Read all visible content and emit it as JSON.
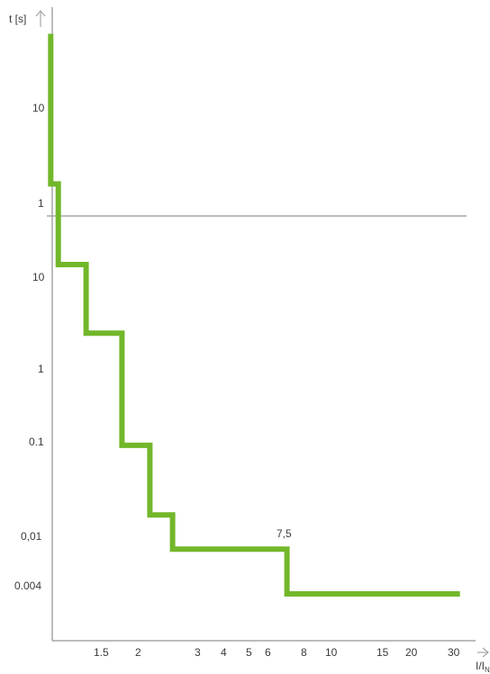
{
  "chart_data": {
    "type": "line",
    "title": "",
    "xlabel": "I/I",
    "xlabel_subscript": "N",
    "ylabel": "t [s]",
    "x_scale": "log",
    "y_scale": "log, broken (two stacked ranges)",
    "x_ticks": [
      "1.5",
      "2",
      "3",
      "4",
      "5",
      "6",
      "8",
      "10",
      "15",
      "20",
      "30"
    ],
    "y_ticks_upper": [
      "10",
      "1"
    ],
    "y_ticks_lower": [
      "10",
      "1",
      "0.1",
      "0,01",
      "0.004"
    ],
    "xlim": [
      1.1,
      33
    ],
    "grid": false,
    "legend": "none",
    "series_color": "#72b72a",
    "axis_color": "#a6a6a6",
    "annotation": "7,5",
    "series": [
      {
        "x": [
          1.13,
          1.13,
          1.2,
          1.2,
          1.5,
          1.5,
          2,
          2,
          2.5,
          2.5,
          3,
          3,
          7.5,
          7.5,
          30
        ],
        "y": [
          "60 (upper)",
          "1.6 (upper)",
          "1.6 (upper)",
          "16 (lower)",
          "16 (lower)",
          "2.4 (lower)",
          "2.4 (lower)",
          "0.09 (lower)",
          "0.09 (lower)",
          "0.017 (lower)",
          "0.017 (lower)",
          "0.008 (lower)",
          "0.008 (lower)",
          "0.0035 (lower)",
          "0.0035 (lower)"
        ]
      }
    ]
  }
}
